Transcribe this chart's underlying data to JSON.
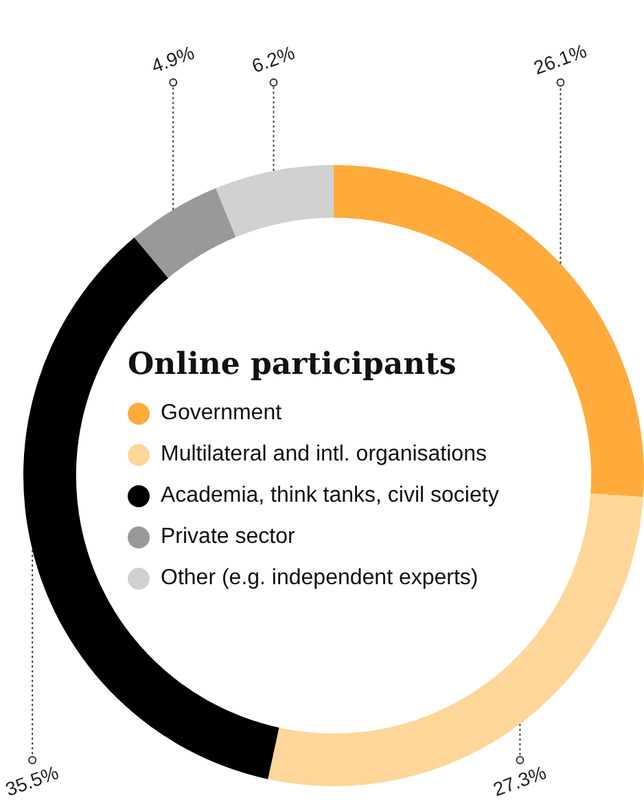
{
  "chart_data": {
    "type": "donut",
    "title": "Online participants",
    "categories": [
      "Government",
      "Multilateral and intl. organisations",
      "Academia, think tanks, civil society",
      "Private sector",
      "Other (e.g. independent experts)"
    ],
    "values": [
      26.1,
      27.3,
      35.5,
      4.9,
      6.2
    ],
    "value_labels": [
      "26.1%",
      "27.3%",
      "35.5%",
      "4.9%",
      "6.2%"
    ],
    "colors": [
      "#ffab3c",
      "#ffd699",
      "#000000",
      "#999999",
      "#d0d1d0"
    ],
    "legend": "center"
  }
}
